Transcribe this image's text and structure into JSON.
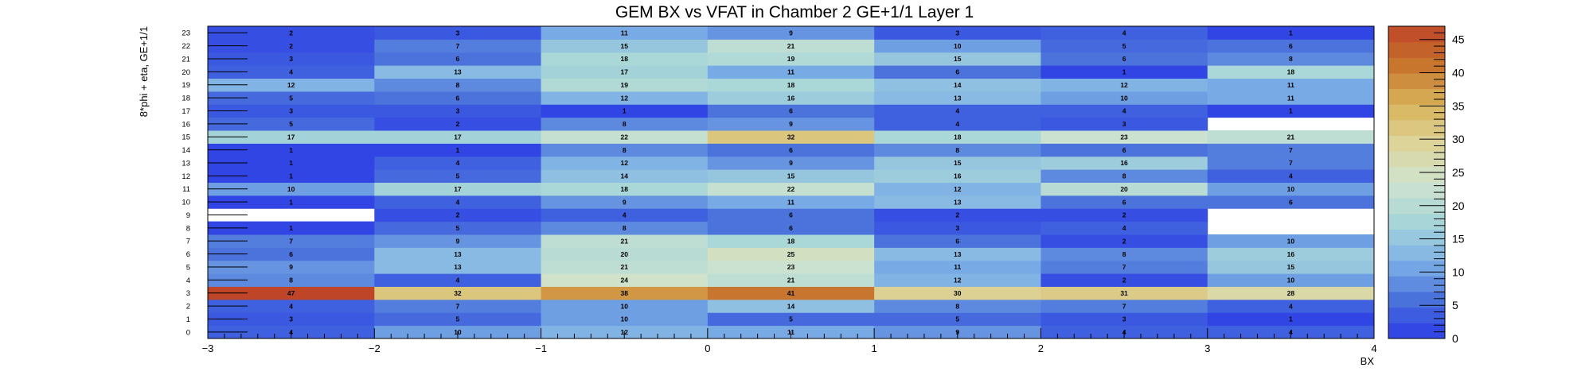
{
  "chart_data": {
    "type": "heatmap",
    "title": "GEM BX vs VFAT in Chamber 2 GE+1/1 Layer 1",
    "xlabel": "BX",
    "ylabel": "8*phi + eta, GE+1/1",
    "xlim": [
      -3,
      4
    ],
    "ylim": [
      0,
      24
    ],
    "x_bins": [
      -3,
      -2,
      -1,
      0,
      1,
      2,
      3
    ],
    "x_ticks": [
      -3,
      -2,
      -1,
      0,
      1,
      2,
      3,
      4
    ],
    "y_bins": [
      0,
      1,
      2,
      3,
      4,
      5,
      6,
      7,
      8,
      9,
      10,
      11,
      12,
      13,
      14,
      15,
      16,
      17,
      18,
      19,
      20,
      21,
      22,
      23
    ],
    "zlim": [
      0,
      47
    ],
    "z_ticks": [
      0,
      5,
      10,
      15,
      20,
      25,
      30,
      35,
      40,
      45
    ],
    "values": [
      [
        4,
        10,
        12,
        11,
        9,
        4,
        4
      ],
      [
        3,
        5,
        10,
        5,
        5,
        3,
        1
      ],
      [
        4,
        7,
        10,
        14,
        8,
        7,
        4
      ],
      [
        47,
        32,
        38,
        41,
        30,
        31,
        28
      ],
      [
        8,
        4,
        24,
        21,
        12,
        2,
        10
      ],
      [
        9,
        13,
        21,
        23,
        11,
        7,
        15
      ],
      [
        6,
        13,
        20,
        25,
        13,
        8,
        16
      ],
      [
        7,
        9,
        21,
        18,
        6,
        2,
        10
      ],
      [
        1,
        5,
        8,
        6,
        3,
        4,
        null
      ],
      [
        null,
        2,
        4,
        6,
        2,
        2,
        null
      ],
      [
        1,
        4,
        9,
        11,
        13,
        6,
        6
      ],
      [
        10,
        17,
        18,
        22,
        12,
        20,
        10
      ],
      [
        1,
        5,
        14,
        15,
        16,
        8,
        4
      ],
      [
        1,
        4,
        12,
        9,
        15,
        16,
        7
      ],
      [
        1,
        1,
        8,
        6,
        8,
        6,
        7
      ],
      [
        17,
        17,
        22,
        32,
        18,
        23,
        21
      ],
      [
        5,
        2,
        8,
        9,
        4,
        3,
        null
      ],
      [
        3,
        3,
        1,
        6,
        4,
        4,
        1
      ],
      [
        5,
        6,
        12,
        16,
        13,
        10,
        11
      ],
      [
        12,
        8,
        19,
        18,
        14,
        12,
        11
      ],
      [
        4,
        13,
        17,
        11,
        6,
        1,
        18
      ],
      [
        3,
        6,
        18,
        19,
        15,
        6,
        8
      ],
      [
        2,
        7,
        15,
        21,
        10,
        5,
        6
      ],
      [
        2,
        3,
        11,
        9,
        3,
        4,
        1
      ]
    ],
    "palette": [
      "#2c3ce6",
      "#4a72db",
      "#7fb2e6",
      "#a8d6d8",
      "#cfe3cf",
      "#ddd49a",
      "#d8b45a",
      "#c8752e",
      "#bf4528"
    ]
  }
}
